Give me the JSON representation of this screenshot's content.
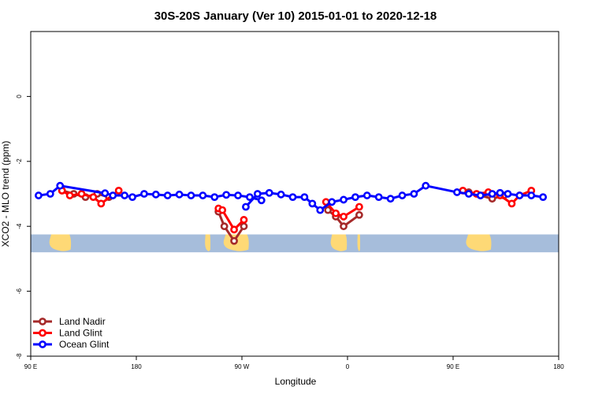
{
  "chart_data": {
    "type": "line",
    "title": "30S-20S January (Ver 10)   2015-01-01 to 2020-12-18",
    "xlabel": "Longitude",
    "ylabel": "XCO2 - MLO trend (ppm)",
    "xlim": [
      -90,
      180
    ],
    "ylim": [
      -8,
      2
    ],
    "x_ticks": [
      {
        "value": -90,
        "label": "90 E"
      },
      {
        "value": -36,
        "label": "180"
      },
      {
        "value": 18,
        "label": "90 W"
      },
      {
        "value": 72,
        "label": "0"
      },
      {
        "value": 126,
        "label": "90 E"
      },
      {
        "value": 180,
        "label": "180"
      }
    ],
    "y_ticks": [
      0,
      -2,
      -4,
      -6,
      -8
    ],
    "grid": false,
    "legend_position": "bottom-left",
    "map_strip": {
      "y_range": [
        -4.8,
        -4.25
      ],
      "ocean_color": "#a6bddb",
      "land_color": "#fed976"
    },
    "series": [
      {
        "name": "Land Nadir",
        "color": "#a52a2a",
        "segments": [
          [
            [
              -74,
              -2.9
            ],
            [
              -68,
              -3.0
            ],
            [
              -62,
              -3.1
            ],
            [
              -56,
              -3.0
            ],
            [
              -50,
              -3.1
            ]
          ],
          [
            [
              6,
              -3.55
            ],
            [
              9,
              -4.0
            ],
            [
              14,
              -4.45
            ],
            [
              19,
              -4.0
            ]
          ],
          [
            [
              62,
              -3.5
            ],
            [
              66,
              -3.7
            ],
            [
              70,
              -4.0
            ],
            [
              78,
              -3.65
            ]
          ],
          [
            [
              134,
              -2.95
            ],
            [
              140,
              -3.05
            ],
            [
              146,
              -3.15
            ],
            [
              152,
              -3.05
            ]
          ]
        ]
      },
      {
        "name": "Land Glint",
        "color": "#ff0000",
        "segments": [
          [
            [
              -74,
              -2.9
            ],
            [
              -70,
              -3.05
            ],
            [
              -64,
              -3.0
            ],
            [
              -58,
              -3.1
            ],
            [
              -54,
              -3.3
            ],
            [
              -45,
              -2.9
            ]
          ],
          [
            [
              6,
              -3.45
            ],
            [
              8,
              -3.5
            ],
            [
              14,
              -4.1
            ],
            [
              19,
              -3.8
            ]
          ],
          [
            [
              61,
              -3.25
            ],
            [
              66,
              -3.6
            ],
            [
              70,
              -3.7
            ],
            [
              78,
              -3.4
            ]
          ],
          [
            [
              131,
              -2.9
            ],
            [
              138,
              -3.0
            ],
            [
              144,
              -2.95
            ],
            [
              150,
              -3.05
            ],
            [
              156,
              -3.3
            ],
            [
              160,
              -3.05
            ],
            [
              166,
              -2.9
            ]
          ]
        ]
      },
      {
        "name": "Ocean Glint",
        "color": "#0000ff",
        "segments": [
          [
            [
              -86,
              -3.05
            ],
            [
              -80,
              -3.0
            ],
            [
              -75,
              -2.75
            ],
            [
              -52,
              -2.98
            ],
            [
              -48,
              -3.05
            ],
            [
              -42,
              -3.05
            ],
            [
              -38,
              -3.1
            ],
            [
              -32,
              -3.0
            ],
            [
              -26,
              -3.02
            ],
            [
              -20,
              -3.05
            ],
            [
              -14,
              -3.02
            ],
            [
              -8,
              -3.05
            ],
            [
              -2,
              -3.05
            ],
            [
              4,
              -3.1
            ],
            [
              10,
              -3.03
            ],
            [
              16,
              -3.05
            ],
            [
              22,
              -3.1
            ],
            [
              28,
              -3.2
            ]
          ],
          [
            [
              20,
              -3.4
            ],
            [
              26,
              -3.0
            ],
            [
              32,
              -2.97
            ],
            [
              38,
              -3.02
            ],
            [
              44,
              -3.1
            ],
            [
              50,
              -3.1
            ],
            [
              54,
              -3.3
            ],
            [
              58,
              -3.5
            ],
            [
              64,
              -3.25
            ],
            [
              70,
              -3.18
            ],
            [
              76,
              -3.1
            ],
            [
              82,
              -3.05
            ],
            [
              88,
              -3.1
            ],
            [
              94,
              -3.15
            ],
            [
              100,
              -3.05
            ],
            [
              106,
              -3.0
            ],
            [
              112,
              -2.75
            ],
            [
              128,
              -2.95
            ],
            [
              134,
              -3.0
            ],
            [
              140,
              -3.05
            ],
            [
              146,
              -3.0
            ],
            [
              150,
              -2.97
            ],
            [
              154,
              -3.0
            ],
            [
              160,
              -3.05
            ],
            [
              166,
              -3.05
            ],
            [
              172,
              -3.1
            ]
          ]
        ]
      }
    ]
  }
}
